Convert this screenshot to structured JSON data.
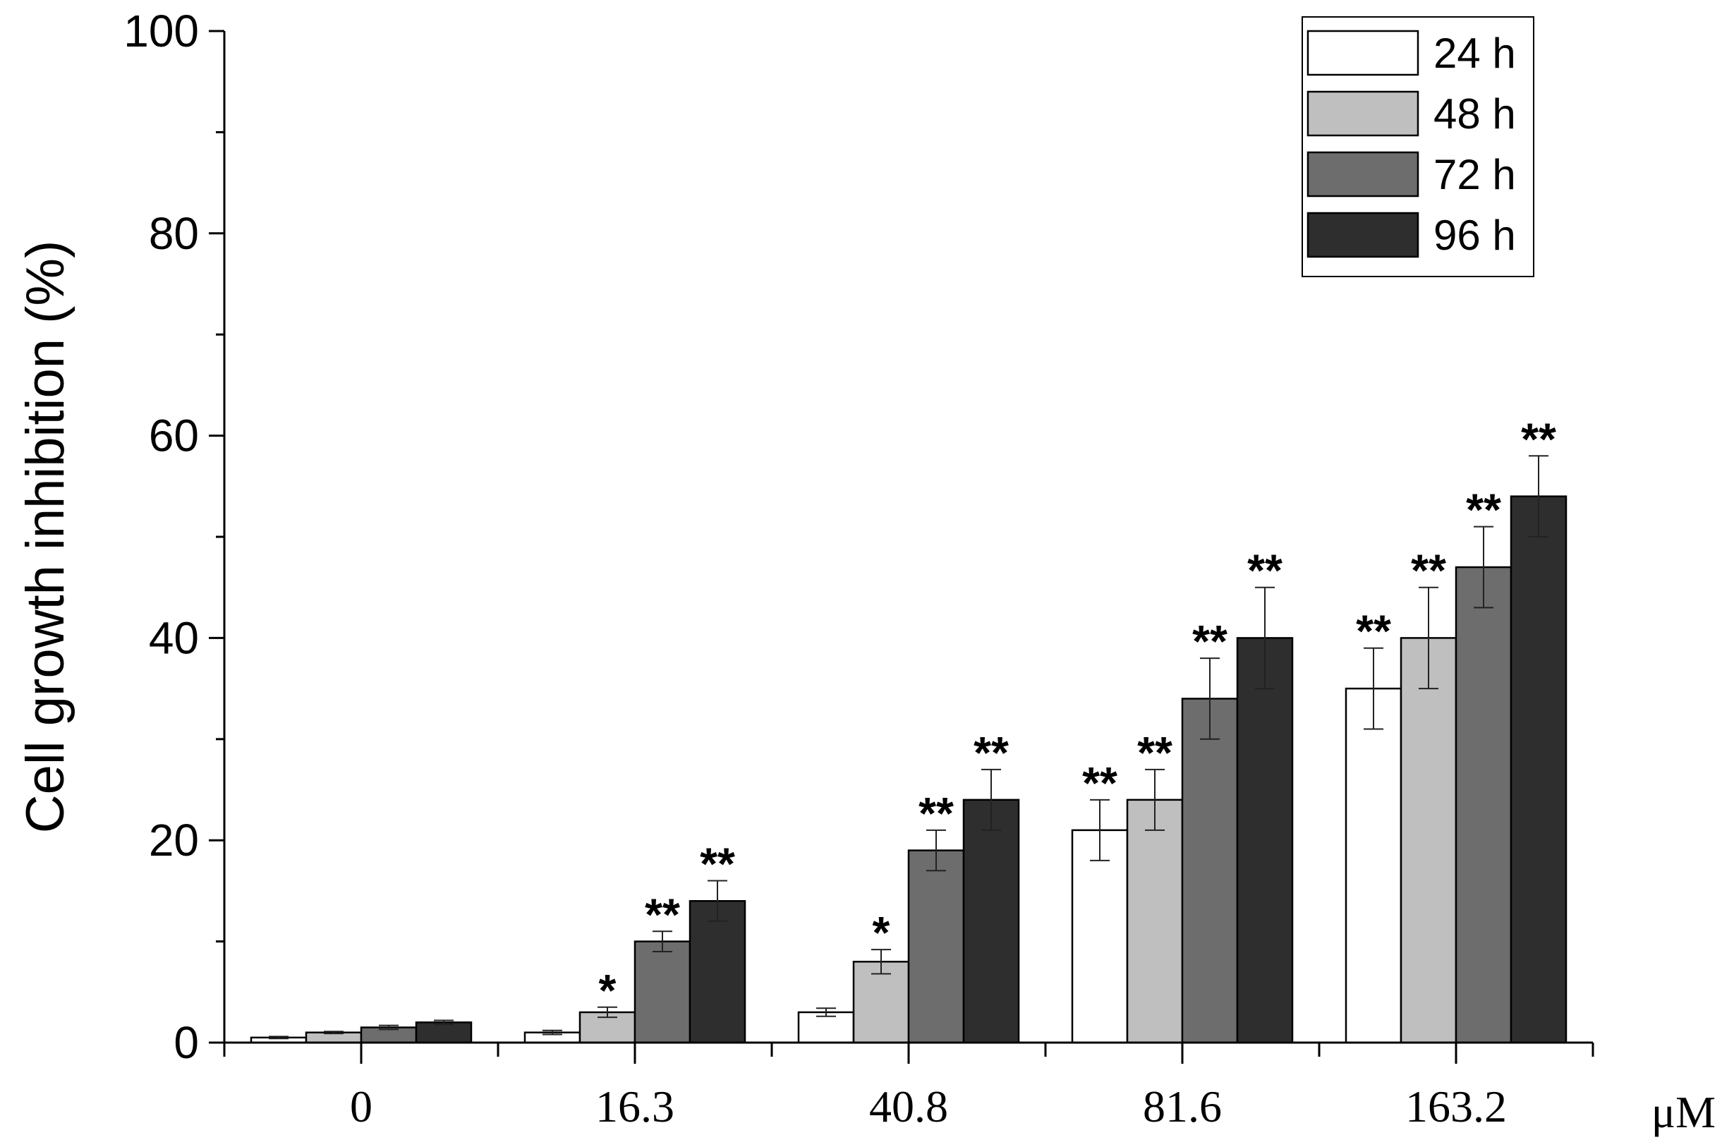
{
  "chart_data": {
    "type": "bar",
    "categories": [
      "0",
      "16.3",
      "40.8",
      "81.6",
      "163.2"
    ],
    "x_unit": "μM",
    "ylabel": "Cell growth inhibition (%)",
    "ylim": [
      0,
      100
    ],
    "yticks": [
      "0",
      "20",
      "40",
      "60",
      "80",
      "100"
    ],
    "legend_position": "top-right",
    "series": [
      {
        "name": "24 h",
        "color": "#ffffff",
        "values": [
          0.5,
          1,
          3,
          21,
          35
        ],
        "errors": [
          0.1,
          0.2,
          0.4,
          3,
          4
        ],
        "sig": [
          "",
          "",
          "",
          "**",
          "**"
        ]
      },
      {
        "name": "48 h",
        "color": "#bfbfbf",
        "values": [
          1,
          3,
          8,
          24,
          40
        ],
        "errors": [
          0.1,
          0.5,
          1.2,
          3,
          5
        ],
        "sig": [
          "",
          "*",
          "*",
          "**",
          "**"
        ]
      },
      {
        "name": "72 h",
        "color": "#6d6d6d",
        "values": [
          1.5,
          10,
          19,
          34,
          47
        ],
        "errors": [
          0.2,
          1,
          2,
          4,
          4
        ],
        "sig": [
          "",
          "**",
          "**",
          "**",
          "**"
        ]
      },
      {
        "name": "96 h",
        "color": "#2e2e2e",
        "values": [
          2,
          14,
          24,
          40,
          54
        ],
        "errors": [
          0.2,
          2,
          3,
          5,
          4
        ],
        "sig": [
          "",
          "**",
          "**",
          "**",
          "**"
        ]
      }
    ]
  }
}
